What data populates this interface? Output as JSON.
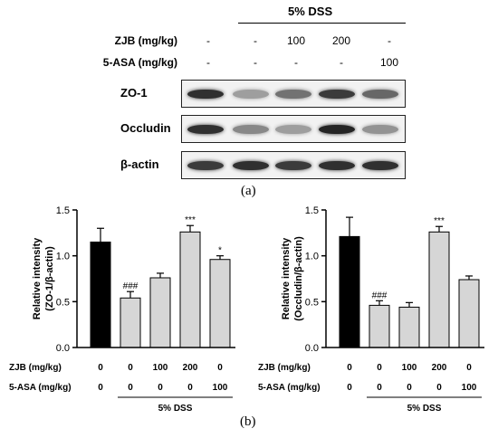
{
  "panel_a": {
    "group_label": "5% DSS",
    "rows": [
      {
        "label": "ZJB (mg/kg)",
        "values": [
          "-",
          "-",
          "100",
          "200",
          "-"
        ]
      },
      {
        "label": "5-ASA (mg/kg)",
        "values": [
          "-",
          "-",
          "-",
          "-",
          "100"
        ]
      }
    ],
    "blots": [
      {
        "label": "ZO-1",
        "intensity": [
          0.85,
          0.35,
          0.55,
          0.8,
          0.6
        ]
      },
      {
        "label": "Occludin",
        "intensity": [
          0.85,
          0.45,
          0.35,
          0.9,
          0.4
        ]
      },
      {
        "label": "β-actin",
        "intensity": [
          0.8,
          0.85,
          0.8,
          0.85,
          0.85
        ]
      }
    ],
    "caption": "(a)"
  },
  "caption_b": "(b)",
  "chart_data": [
    {
      "type": "bar",
      "ylabel": "Relative intensity",
      "ylabel2": "(ZO-1/β-actin)",
      "ylim": [
        0,
        1.5
      ],
      "yticks": [
        "0.0",
        "0.5",
        "1.0",
        "1.5"
      ],
      "values": [
        1.15,
        0.54,
        0.76,
        1.26,
        0.96
      ],
      "errors": [
        0.15,
        0.07,
        0.05,
        0.07,
        0.04
      ],
      "bar_colors": [
        "#000000",
        "#d6d6d6",
        "#d6d6d6",
        "#d6d6d6",
        "#d6d6d6"
      ],
      "annotations": [
        "",
        "###",
        "",
        "***",
        "*"
      ],
      "row_labels": [
        "ZJB (mg/kg)",
        "5-ASA (mg/kg)"
      ],
      "zjb": [
        "0",
        "0",
        "100",
        "200",
        "0"
      ],
      "asa": [
        "0",
        "0",
        "0",
        "0",
        "100"
      ],
      "dss_label": "5% DSS"
    },
    {
      "type": "bar",
      "ylabel": "Relative intensity",
      "ylabel2": "(Occludin/β-actin)",
      "ylim": [
        0,
        1.5
      ],
      "yticks": [
        "0.0",
        "0.5",
        "1.0",
        "1.5"
      ],
      "values": [
        1.21,
        0.46,
        0.44,
        1.26,
        0.74
      ],
      "errors": [
        0.21,
        0.05,
        0.05,
        0.06,
        0.04
      ],
      "bar_colors": [
        "#000000",
        "#d6d6d6",
        "#d6d6d6",
        "#d6d6d6",
        "#d6d6d6"
      ],
      "annotations": [
        "",
        "###",
        "",
        "***",
        ""
      ],
      "row_labels": [
        "ZJB (mg/kg)",
        "5-ASA (mg/kg)"
      ],
      "zjb": [
        "0",
        "0",
        "100",
        "200",
        "0"
      ],
      "asa": [
        "0",
        "0",
        "0",
        "0",
        "100"
      ],
      "dss_label": "5% DSS"
    }
  ]
}
